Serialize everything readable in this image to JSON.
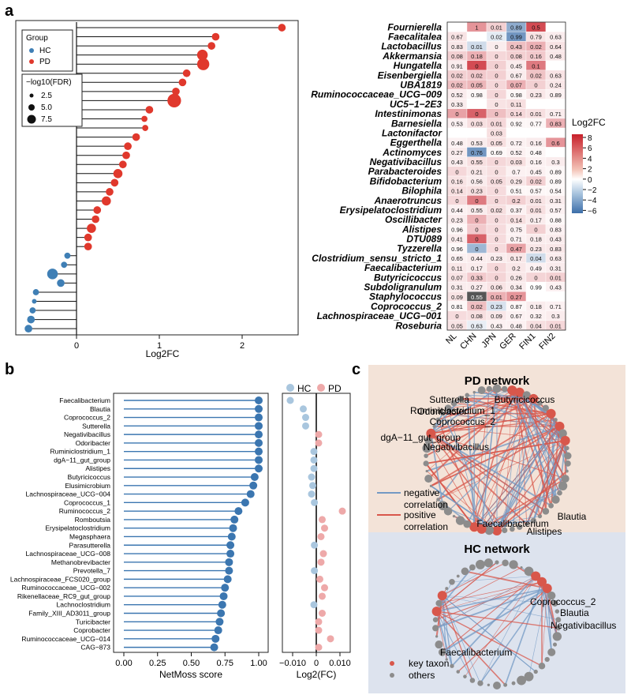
{
  "panel_labels": {
    "a": "a",
    "b": "b",
    "c": "c"
  },
  "chart_data": [
    {
      "id": "a-lollipop",
      "type": "lollipop",
      "xlabel": "Log2FC",
      "xlim": [
        -0.6,
        2.6
      ],
      "xticks": [
        0,
        1,
        2
      ],
      "legend": {
        "group_title": "Group",
        "groups": [
          "HC",
          "PD"
        ],
        "size_title": "−log10(FDR)",
        "sizes": [
          "2.5",
          "5.0",
          "7.5"
        ]
      },
      "colors": {
        "HC": "#3f7fb5",
        "PD": "#e0382c"
      },
      "values": [
        2.48,
        1.68,
        1.63,
        1.52,
        1.53,
        1.33,
        1.28,
        1.2,
        1.18,
        0.88,
        0.82,
        0.83,
        0.72,
        0.62,
        0.6,
        0.56,
        0.5,
        0.46,
        0.4,
        0.36,
        0.25,
        0.23,
        0.18,
        0.14,
        0.14,
        -0.11,
        -0.15,
        -0.29,
        -0.19,
        -0.49,
        -0.51,
        -0.53,
        -0.55,
        -0.58
      ],
      "fdr": [
        3,
        3,
        3,
        5,
        6,
        3,
        3,
        3,
        7,
        3,
        2,
        2,
        3,
        3,
        3,
        3,
        4,
        3,
        3,
        4,
        3,
        3,
        4,
        3,
        3,
        2,
        2,
        5,
        3,
        2,
        1,
        2,
        3,
        3
      ]
    },
    {
      "id": "a-heatmap",
      "type": "heatmap",
      "legend_title": "Log2FC",
      "legend_ticks": [
        "8",
        "6",
        "4",
        "2",
        "0",
        "−2",
        "−4",
        "−6"
      ],
      "columns": [
        "NL",
        "CHN",
        "JPN",
        "GER",
        "FIN1",
        "FIN2"
      ],
      "rows": [
        "Fournierella",
        "Faecalitalea",
        "Lactobacillus",
        "Akkermansia",
        "Hungatella",
        "Eisenbergiella",
        "UBA1819",
        "Ruminococcaceae_UCG−009",
        "UC5−1−2E3",
        "Intestinimonas",
        "Barnesiella",
        "Lactonifactor",
        "Eggerthella",
        "Actinomyces",
        "Negativibacillus",
        "Parabacteroides",
        "Bifidobacterium",
        "Bilophila",
        "Anaerotruncus",
        "Erysipelatoclostridium",
        "Oscillibacter",
        "Alistipes",
        "DTU089",
        "Tyzzerella",
        "Clostridium_sensu_stricto_1",
        "Faecalibacterium",
        "Butyricicoccus",
        "Subdoligranulum",
        "Staphylococcus",
        "Coprococcus_2",
        "Lachnospiraceae_UCG−001",
        "Roseburia"
      ],
      "cells": [
        [
          "",
          "1",
          "0.01",
          "0.89",
          "0.5",
          ""
        ],
        [
          "0.67",
          "",
          "0.02",
          "0.99",
          "0.79",
          "0.63"
        ],
        [
          "0.83",
          "0.01",
          "0",
          "0.43",
          "0.02",
          "0.64"
        ],
        [
          "0.08",
          "0.18",
          "0",
          "0.08",
          "0.16",
          "0.48"
        ],
        [
          "0.91",
          "0",
          "0",
          "0.45",
          "0.1",
          ""
        ],
        [
          "0.02",
          "0.02",
          "0",
          "0.67",
          "0.02",
          "0.63"
        ],
        [
          "0.02",
          "0.05",
          "0",
          "0.07",
          "0",
          "0.24"
        ],
        [
          "0.52",
          "0.98",
          "0",
          "0.98",
          "0.23",
          "0.89"
        ],
        [
          "0.33",
          "",
          "0",
          "0.11",
          "",
          ""
        ],
        [
          "0",
          "0",
          "0",
          "0.14",
          "0.01",
          "0.71"
        ],
        [
          "0.53",
          "0.03",
          "0.01",
          "0.92",
          "0.77",
          "0.83"
        ],
        [
          "",
          "",
          "0.03",
          "",
          "",
          ""
        ],
        [
          "0.48",
          "0.53",
          "0.05",
          "0.72",
          "0.16",
          "0.6"
        ],
        [
          "0.27",
          "0.76",
          "0.69",
          "0.52",
          "0.48",
          ""
        ],
        [
          "0.43",
          "0.55",
          "0",
          "0.03",
          "0.16",
          "0.3"
        ],
        [
          "0",
          "0.21",
          "0",
          "0.7",
          "0.45",
          "0.89"
        ],
        [
          "0.16",
          "0.56",
          "0.05",
          "0.29",
          "0.02",
          "0.89"
        ],
        [
          "0.14",
          "0.23",
          "0",
          "0.51",
          "0.57",
          "0.54"
        ],
        [
          "0",
          "0",
          "0",
          "0.2",
          "0.01",
          "0.31"
        ],
        [
          "0.44",
          "0.55",
          "0.02",
          "0.37",
          "0.01",
          "0.57"
        ],
        [
          "0.23",
          "0",
          "0",
          "0.14",
          "0.17",
          "0.88"
        ],
        [
          "0.96",
          "0",
          "0",
          "0.75",
          "0",
          "0.83"
        ],
        [
          "0.41",
          "0",
          "0",
          "0.71",
          "0.18",
          "0.43"
        ],
        [
          "0.96",
          "0",
          "0",
          "0.47",
          "0.23",
          "0.83"
        ],
        [
          "0.65",
          "0.44",
          "0.23",
          "0.17",
          "0.04",
          "0.63"
        ],
        [
          "0.11",
          "0.17",
          "0",
          "0.2",
          "0.49",
          "0.31"
        ],
        [
          "0.07",
          "0.33",
          "0",
          "0.26",
          "0",
          "0.01"
        ],
        [
          "0.31",
          "0.27",
          "0.06",
          "0.34",
          "0.99",
          "0.43"
        ],
        [
          "0.09",
          "0.55",
          "0.01",
          "0.27",
          "",
          ""
        ],
        [
          "0.81",
          "0.02",
          "0.23",
          "0.87",
          "0.18",
          "0.71"
        ],
        [
          "0",
          "0.08",
          "0.09",
          "0.67",
          "0.32",
          "0.3"
        ],
        [
          "0.05",
          "0.63",
          "0.43",
          "0.48",
          "0.04",
          "0.01"
        ]
      ],
      "fills": [
        [
          null,
          3,
          1,
          -3,
          6,
          null
        ],
        [
          0.5,
          null,
          -0.5,
          -4,
          0.5,
          0.3
        ],
        [
          0.4,
          -1,
          0.3,
          1.5,
          2,
          0.5
        ],
        [
          1,
          2,
          0.8,
          1,
          1.2,
          0.4
        ],
        [
          0.3,
          6,
          1,
          0.3,
          4,
          null
        ],
        [
          1,
          1.2,
          1,
          0.3,
          1.4,
          0.5
        ],
        [
          1.5,
          1.8,
          0.8,
          2,
          1,
          0.4
        ],
        [
          0.3,
          0.1,
          0.8,
          0.1,
          0.4,
          0.2
        ],
        [
          0.3,
          null,
          0.5,
          0.6,
          null,
          null
        ],
        [
          2.5,
          5,
          1.5,
          0.8,
          0.6,
          0.3
        ],
        [
          0.2,
          0.6,
          0.8,
          0.1,
          0.1,
          2
        ],
        [
          null,
          null,
          0.6,
          null,
          null,
          null
        ],
        [
          0.2,
          0.3,
          0.6,
          0.2,
          0.3,
          3
        ],
        [
          0.3,
          -4,
          0.1,
          0.2,
          0.1,
          null
        ],
        [
          0.3,
          0.6,
          0.8,
          0.6,
          0.2,
          0.3
        ],
        [
          0.8,
          0.4,
          0.6,
          0.2,
          0.2,
          0.1
        ],
        [
          0.5,
          0.3,
          0.7,
          0.4,
          1,
          0.1
        ],
        [
          0.6,
          0.6,
          0.7,
          0.1,
          0.1,
          0.1
        ],
        [
          0.8,
          4,
          0.8,
          1,
          0.5,
          0.3
        ],
        [
          0.2,
          0.3,
          0.6,
          0.2,
          0.6,
          0.2
        ],
        [
          0.3,
          2,
          0.7,
          0.6,
          0.3,
          0.1
        ],
        [
          0.1,
          1.2,
          0.7,
          0.2,
          1,
          0.2
        ],
        [
          0.3,
          5,
          0.7,
          0.2,
          0.3,
          0.3
        ],
        [
          0.1,
          -2.5,
          0.7,
          2.5,
          0.4,
          0.4
        ],
        [
          0.2,
          0.3,
          0.3,
          0.4,
          -1,
          0.3
        ],
        [
          0.4,
          0.3,
          0.8,
          0.4,
          0.2,
          0.3
        ],
        [
          0.5,
          1.2,
          0.9,
          0.4,
          0.9,
          1
        ],
        [
          0.3,
          0.3,
          0.5,
          0.3,
          0,
          0.2
        ],
        [
          0.5,
          9,
          2,
          3,
          null,
          null
        ],
        [
          0.1,
          1.5,
          -0.8,
          0.1,
          0.3,
          0.2
        ],
        [
          0.7,
          0.6,
          0.4,
          0.2,
          0.2,
          0.3
        ],
        [
          0.5,
          -0.4,
          0.2,
          0.2,
          0.6,
          0.8
        ]
      ]
    },
    {
      "id": "b-netmoss",
      "type": "lollipop",
      "xlabel": "NetMoss score",
      "xlim": [
        0,
        1
      ],
      "xticks": [
        "0.00",
        "0.25",
        "0.50",
        "0.75",
        "1.00"
      ],
      "color": "#3b76b0",
      "categories": [
        "Faecalibacterium",
        "Blautia",
        "Coprococcus_2",
        "Sutterella",
        "Negativibacillus",
        "Odoribacter",
        "Ruminiclostridium_1",
        "dgA−11_gut_group",
        "Alistipes",
        "Butyricicoccus",
        "Elusimicrobium",
        "Lachnospiraceae_UCG−004",
        "Coprococcus_1",
        "Ruminococcus_2",
        "Romboutsia",
        "Erysipelatoclostridium",
        "Megasphaera",
        "Parasutterella",
        "Lachnospiraceae_UCG−008",
        "Methanobrevibacter",
        "Prevotella_7",
        "Lachnospiraceae_FCS020_group",
        "Ruminococcaceae_UCG−002",
        "Rikenellaceae_RC9_gut_group",
        "Lachnoclostridium",
        "Family_XIII_AD3011_group",
        "Turicibacter",
        "Coprobacter",
        "Ruminococcaceae_UCG−014",
        "CAG−873"
      ],
      "values": [
        1.0,
        1.0,
        1.0,
        1.0,
        1.0,
        1.0,
        1.0,
        1.0,
        1.0,
        0.97,
        0.96,
        0.94,
        0.9,
        0.85,
        0.82,
        0.81,
        0.8,
        0.79,
        0.79,
        0.78,
        0.78,
        0.77,
        0.75,
        0.74,
        0.73,
        0.72,
        0.71,
        0.7,
        0.68,
        0.67
      ]
    },
    {
      "id": "b-log2fc",
      "type": "scatter",
      "xlabel": "Log2(FC)",
      "xlim": [
        -0.014,
        0.012
      ],
      "xticks": [
        "−0.010",
        "0",
        "0.010"
      ],
      "legend": [
        "HC",
        "PD"
      ],
      "colors": {
        "HC": "#a9c6de",
        "PD": "#eea9a9"
      },
      "values": [
        -0.011,
        -0.0055,
        -0.0045,
        -0.0045,
        0.001,
        0.001,
        -0.001,
        -0.001,
        -0.001,
        -0.002,
        -0.0015,
        -0.002,
        -0.0008,
        0.011,
        0.0025,
        0.0035,
        0.002,
        -0.0008,
        0.003,
        0.002,
        -0.0008,
        0.0015,
        0.0035,
        0.0025,
        -0.001,
        0.0025,
        0.001,
        0.001,
        0.006,
        0.001
      ]
    }
  ],
  "network": {
    "pd": {
      "title": "PD network",
      "labels": [
        "Sutterella",
        "Butyricicoccus",
        "Odoribacter",
        "Ruminiclostridium_1",
        "Coprococcus_2",
        "dgA−11_gut_group",
        "Negativibacillus",
        "Faecalibacterium",
        "Blautia",
        "Alistipes"
      ],
      "legend": [
        "negative\ncorrelation",
        "positive\ncorrelation"
      ]
    },
    "hc": {
      "title": "HC network",
      "labels": [
        "Coprococcus_2",
        "Blautia",
        "Negativibacillus",
        "Faecalibacterium"
      ],
      "legend": [
        "key taxon",
        "others"
      ]
    },
    "colors": {
      "negative": "#7399c4",
      "positive": "#d8574b",
      "key": "#d8574b",
      "other": "#8c8c8c",
      "pd_bg": "#f3e3d8",
      "hc_bg": "#dde3ee"
    }
  }
}
